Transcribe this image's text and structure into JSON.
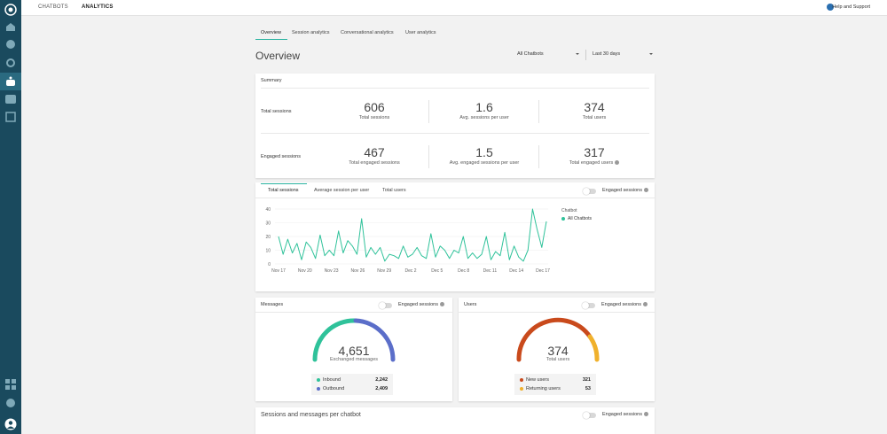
{
  "nav": {
    "chatbots": "CHATBOTS",
    "analytics": "ANALYTICS",
    "help": "Help and Support"
  },
  "tabs": [
    "Overview",
    "Session analytics",
    "Conversational analytics",
    "User analytics"
  ],
  "page": {
    "title": "Overview",
    "bot_select": "All Chatbots",
    "range_select": "Last 30 days"
  },
  "summary": {
    "heading": "Summary",
    "total_label": "Total sessions",
    "engaged_label": "Engaged sessions",
    "total": [
      {
        "value": "606",
        "label": "Total sessions"
      },
      {
        "value": "1.6",
        "label": "Avg. sessions per user"
      },
      {
        "value": "374",
        "label": "Total users"
      }
    ],
    "engaged": [
      {
        "value": "467",
        "label": "Total engaged sessions"
      },
      {
        "value": "1.5",
        "label": "Avg. engaged sessions per user"
      },
      {
        "value": "317",
        "label": "Total engaged users"
      }
    ]
  },
  "chart_tabs": [
    "Total sessions",
    "Average session per user",
    "Total users"
  ],
  "engaged_toggle": "Engaged sessions",
  "chart_data": {
    "type": "line",
    "title": "",
    "xlabel": "",
    "ylabel": "",
    "ylim": [
      0,
      40
    ],
    "yticks": [
      0,
      10,
      20,
      30,
      40
    ],
    "x_tick_labels": [
      "Nov 17",
      "Nov 20",
      "Nov 23",
      "Nov 26",
      "Nov 29",
      "Dec 2",
      "Dec 5",
      "Dec 8",
      "Dec 11",
      "Dec 14",
      "Dec 17"
    ],
    "legend_title": "Chatbot",
    "legend_position": "top-right",
    "series": [
      {
        "name": "All Chatbots",
        "color": "#2fc29a",
        "values": [
          20,
          7,
          18,
          8,
          15,
          3,
          16,
          12,
          4,
          21,
          6,
          10,
          6,
          24,
          8,
          17,
          13,
          7,
          33,
          5,
          12,
          7,
          12,
          2,
          7,
          6,
          4,
          13,
          5,
          7,
          12,
          6,
          4,
          22,
          5,
          13,
          10,
          4,
          10,
          8,
          20,
          4,
          8,
          4,
          7,
          20,
          3,
          9,
          6,
          23,
          3,
          13,
          5,
          2,
          10,
          40,
          25,
          12,
          31
        ]
      }
    ]
  },
  "messages": {
    "title": "Messages",
    "toggle": "Engaged sessions",
    "value": "4,651",
    "sublabel": "Exchanged messages",
    "items": [
      {
        "label": "Inbound",
        "value": "2,242",
        "color": "#2fc29a"
      },
      {
        "label": "Outbound",
        "value": "2,409",
        "color": "#5b6ec9"
      }
    ]
  },
  "users": {
    "title": "Users",
    "toggle": "Engaged sessions",
    "value": "374",
    "sublabel": "Total users",
    "items": [
      {
        "label": "New users",
        "value": "321",
        "color": "#c94a1c"
      },
      {
        "label": "Returning users",
        "value": "53",
        "color": "#f0b12c"
      }
    ]
  },
  "bottom": {
    "title": "Sessions and messages per chatbot",
    "toggle": "Engaged sessions"
  }
}
